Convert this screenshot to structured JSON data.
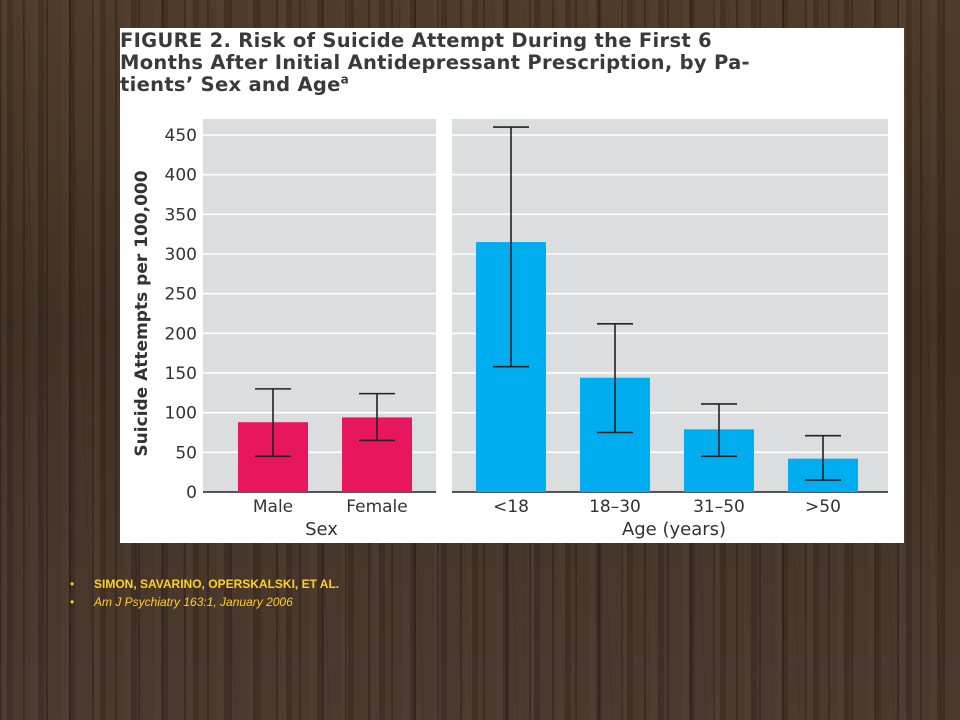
{
  "colors": {
    "sex_bar": "#e8175d",
    "age_bar": "#00adef",
    "panel_bg": "#dcdddf",
    "grid": "#ffffff",
    "axis_text": "#333333",
    "reference_text": "#ffd21a"
  },
  "figure": {
    "title_lines": [
      "FIGURE 2. Risk of Suicide Attempt During the First 6",
      "Months After Initial Antidepressant Prescription, by Pa-",
      "tients’ Sex and Age"
    ],
    "title_superscript": "a"
  },
  "chart_data": {
    "type": "bar",
    "ylabel": "Suicide Attempts per 100,000",
    "ylim": [
      0,
      450
    ],
    "yticks": [
      "0",
      "50",
      "100",
      "150",
      "200",
      "250",
      "300",
      "350",
      "400",
      "450"
    ],
    "grid": true,
    "error_bars": true,
    "panels": [
      {
        "xlabel": "Sex",
        "categories": [
          "Male",
          "Female"
        ],
        "values": [
          88,
          94
        ],
        "error_low": [
          45,
          65
        ],
        "error_high": [
          130,
          124
        ],
        "color": "#e8175d"
      },
      {
        "xlabel": "Age (years)",
        "categories": [
          "<18",
          "18–30",
          "31–50",
          ">50"
        ],
        "values": [
          315,
          144,
          79,
          42
        ],
        "error_low": [
          158,
          75,
          45,
          15
        ],
        "error_high": [
          460,
          212,
          111,
          71
        ],
        "color": "#00adef"
      }
    ]
  },
  "references": [
    {
      "icon": "bullet-icon",
      "text": "SIMON, SAVARINO, OPERSKALSKI, ET AL."
    },
    {
      "icon": "bullet-icon",
      "text": "Am J Psychiatry 163:1, January 2006"
    }
  ]
}
